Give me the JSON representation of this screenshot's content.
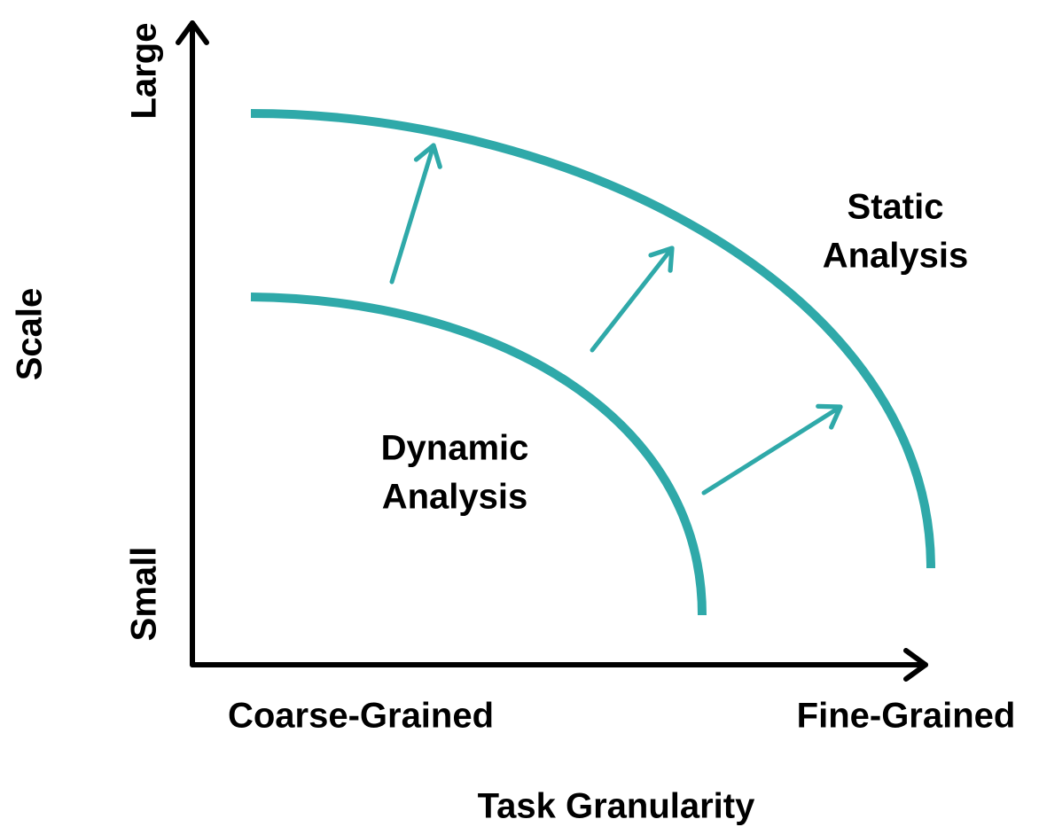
{
  "axes": {
    "y_label": "Scale",
    "y_high": "Large",
    "y_low": "Small",
    "x_label": "Task Granularity",
    "x_low": "Coarse-Grained",
    "x_high": "Fine-Grained"
  },
  "regions": [
    {
      "lines": [
        "Static",
        "Analysis"
      ]
    },
    {
      "lines": [
        "Dynamic",
        "Analysis"
      ]
    }
  ]
}
